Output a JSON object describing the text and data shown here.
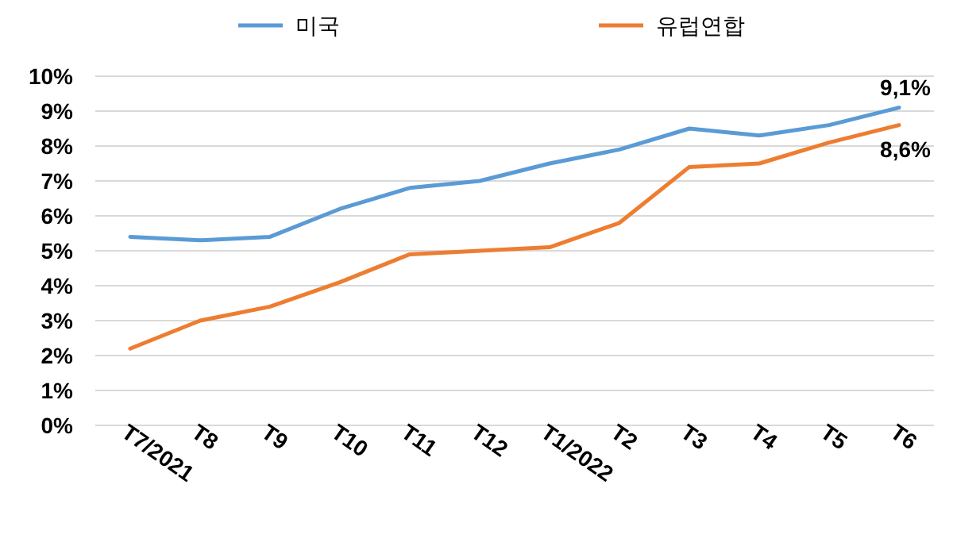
{
  "chart_data": {
    "type": "line",
    "categories": [
      "T7/2021",
      "T8",
      "T9",
      "T10",
      "T11",
      "T12",
      "T1/2022",
      "T2",
      "T3",
      "T4",
      "T5",
      "T6"
    ],
    "series": [
      {
        "name": "미국",
        "color": "#5b9bd5",
        "values": [
          5.4,
          5.3,
          5.4,
          6.2,
          6.8,
          7.0,
          7.5,
          7.9,
          8.5,
          8.3,
          8.6,
          9.1
        ],
        "value_labels": [
          null,
          null,
          null,
          null,
          null,
          null,
          null,
          null,
          null,
          null,
          null,
          "9,1%"
        ]
      },
      {
        "name": "유럽연합",
        "color": "#ed7d31",
        "values": [
          2.2,
          3.0,
          3.4,
          4.1,
          4.9,
          5.0,
          5.1,
          5.8,
          7.4,
          7.5,
          8.1,
          8.6
        ],
        "value_labels": [
          null,
          null,
          null,
          null,
          null,
          null,
          null,
          null,
          null,
          null,
          null,
          "8,6%"
        ]
      }
    ],
    "ylim": [
      0,
      10
    ],
    "yticks": [
      {
        "value": 0,
        "label": "0%"
      },
      {
        "value": 1,
        "label": "1%"
      },
      {
        "value": 2,
        "label": "2%"
      },
      {
        "value": 3,
        "label": "3%"
      },
      {
        "value": 4,
        "label": "4%"
      },
      {
        "value": 5,
        "label": "5%"
      },
      {
        "value": 6,
        "label": "6%"
      },
      {
        "value": 7,
        "label": "7%"
      },
      {
        "value": 8,
        "label": "8%"
      },
      {
        "value": 9,
        "label": "9%"
      },
      {
        "value": 10,
        "label": "10%"
      }
    ],
    "grid": "y",
    "legend": "top",
    "marker": "none",
    "line_style": "solid"
  }
}
